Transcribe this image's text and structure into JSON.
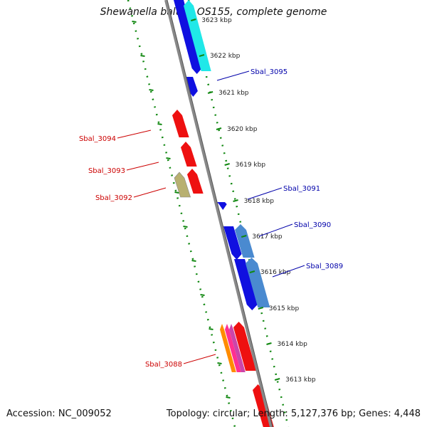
{
  "title": "Shewanella baltica OS155, complete genome",
  "footer": {
    "accession": "Accession: NC_009052",
    "summary": "Topology: circular; Length: 5,127,376 bp; Genes: 4,448"
  },
  "colors": {
    "forward_label": "#0000aa",
    "reverse_label": "#cc0000",
    "backbone": "#888888",
    "dotted_guide": "#118811"
  },
  "kbp_ticks": [
    "3623 kbp",
    "3622 kbp",
    "3621 kbp",
    "3620 kbp",
    "3619 kbp",
    "3618 kbp",
    "3617 kbp",
    "3616 kbp",
    "3615 kbp",
    "3614 kbp",
    "3613 kbp"
  ],
  "gene_labels": [
    {
      "name": "Sbal_3095",
      "strand": "forward"
    },
    {
      "name": "Sbal_3094",
      "strand": "reverse"
    },
    {
      "name": "Sbal_3093",
      "strand": "reverse"
    },
    {
      "name": "Sbal_3092",
      "strand": "reverse"
    },
    {
      "name": "Sbal_3091",
      "strand": "forward"
    },
    {
      "name": "Sbal_3090",
      "strand": "forward"
    },
    {
      "name": "Sbal_3089",
      "strand": "forward"
    },
    {
      "name": "Sbal_3088",
      "strand": "reverse"
    }
  ]
}
